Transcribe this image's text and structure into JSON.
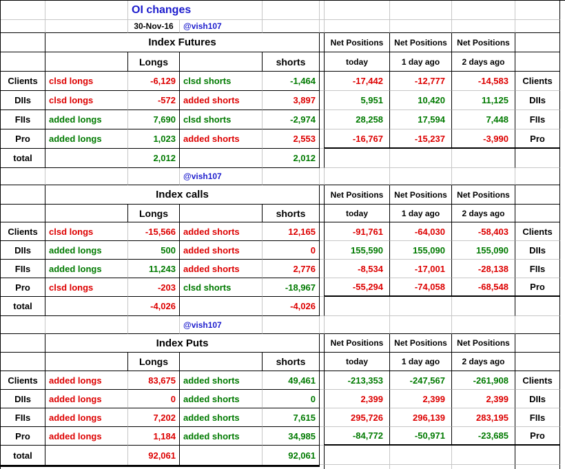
{
  "app": {
    "title": "OI changes",
    "date": "30-Nov-16",
    "handle": "@vish107"
  },
  "colors": {
    "red": "#dd0000",
    "green": "#007a00",
    "blue": "#1c1ccd",
    "grid": "#c6c6c6",
    "border": "#000000",
    "background": "#ffffff"
  },
  "labels": {
    "longs": "Longs",
    "shorts": "shorts",
    "net_positions": "Net Positions",
    "net_columns": [
      "today",
      "1 day ago",
      "2 days ago"
    ],
    "total": "total"
  },
  "sections": [
    {
      "title": "Index Futures",
      "handle_above": false,
      "rows": [
        {
          "label": "Clients",
          "action_long": "clsd longs",
          "al_color": "red",
          "long": "-6,129",
          "long_color": "red",
          "action_short": "clsd shorts",
          "as_color": "green",
          "short": "-1,464",
          "short_color": "green",
          "net": [
            "-17,442",
            "-12,777",
            "-14,583"
          ],
          "net_color": "red"
        },
        {
          "label": "DIIs",
          "action_long": "clsd longs",
          "al_color": "red",
          "long": "-572",
          "long_color": "red",
          "action_short": "added shorts",
          "as_color": "red",
          "short": "3,897",
          "short_color": "red",
          "net": [
            "5,951",
            "10,420",
            "11,125"
          ],
          "net_color": "green"
        },
        {
          "label": "FIIs",
          "action_long": "added longs",
          "al_color": "green",
          "long": "7,690",
          "long_color": "green",
          "action_short": "clsd shorts",
          "as_color": "green",
          "short": "-2,974",
          "short_color": "green",
          "net": [
            "28,258",
            "17,594",
            "7,448"
          ],
          "net_color": "green"
        },
        {
          "label": "Pro",
          "action_long": "added longs",
          "al_color": "green",
          "long": "1,023",
          "long_color": "green",
          "action_short": "added shorts",
          "as_color": "red",
          "short": "2,553",
          "short_color": "red",
          "net": [
            "-16,767",
            "-15,237",
            "-3,990"
          ],
          "net_color": "red"
        }
      ],
      "total": {
        "long": "2,012",
        "long_color": "green",
        "short": "2,012",
        "short_color": "green"
      }
    },
    {
      "title": "Index calls",
      "handle_above": true,
      "rows": [
        {
          "label": "Clients",
          "action_long": "clsd longs",
          "al_color": "red",
          "long": "-15,566",
          "long_color": "red",
          "action_short": "added shorts",
          "as_color": "red",
          "short": "12,165",
          "short_color": "red",
          "net": [
            "-91,761",
            "-64,030",
            "-58,403"
          ],
          "net_color": "red"
        },
        {
          "label": "DIIs",
          "action_long": "added longs",
          "al_color": "green",
          "long": "500",
          "long_color": "green",
          "action_short": "added shorts",
          "as_color": "red",
          "short": "0",
          "short_color": "red",
          "net": [
            "155,590",
            "155,090",
            "155,090"
          ],
          "net_color": "green"
        },
        {
          "label": "FIIs",
          "action_long": "added longs",
          "al_color": "green",
          "long": "11,243",
          "long_color": "green",
          "action_short": "added shorts",
          "as_color": "red",
          "short": "2,776",
          "short_color": "red",
          "net": [
            "-8,534",
            "-17,001",
            "-28,138"
          ],
          "net_color": "red"
        },
        {
          "label": "Pro",
          "action_long": "clsd longs",
          "al_color": "red",
          "long": "-203",
          "long_color": "red",
          "action_short": "clsd shorts",
          "as_color": "green",
          "short": "-18,967",
          "short_color": "green",
          "net": [
            "-55,294",
            "-74,058",
            "-68,548"
          ],
          "net_color": "red"
        }
      ],
      "total": {
        "long": "-4,026",
        "long_color": "red",
        "short": "-4,026",
        "short_color": "red"
      }
    },
    {
      "title": "Index Puts",
      "handle_above": true,
      "rows": [
        {
          "label": "Clients",
          "action_long": "added longs",
          "al_color": "red",
          "long": "83,675",
          "long_color": "red",
          "action_short": "added shorts",
          "as_color": "green",
          "short": "49,461",
          "short_color": "green",
          "net": [
            "-213,353",
            "-247,567",
            "-261,908"
          ],
          "net_color": "green"
        },
        {
          "label": "DIIs",
          "action_long": "added longs",
          "al_color": "red",
          "long": "0",
          "long_color": "red",
          "action_short": "added shorts",
          "as_color": "green",
          "short": "0",
          "short_color": "green",
          "net": [
            "2,399",
            "2,399",
            "2,399"
          ],
          "net_color": "red"
        },
        {
          "label": "FIIs",
          "action_long": "added longs",
          "al_color": "red",
          "long": "7,202",
          "long_color": "red",
          "action_short": "added shorts",
          "as_color": "green",
          "short": "7,615",
          "short_color": "green",
          "net": [
            "295,726",
            "296,139",
            "283,195"
          ],
          "net_color": "red"
        },
        {
          "label": "Pro",
          "action_long": "added longs",
          "al_color": "red",
          "long": "1,184",
          "long_color": "red",
          "action_short": "added shorts",
          "as_color": "green",
          "short": "34,985",
          "short_color": "green",
          "net": [
            "-84,772",
            "-50,971",
            "-23,685"
          ],
          "net_color": "green"
        }
      ],
      "total": {
        "long": "92,061",
        "long_color": "red",
        "short": "92,061",
        "short_color": "green"
      }
    }
  ]
}
